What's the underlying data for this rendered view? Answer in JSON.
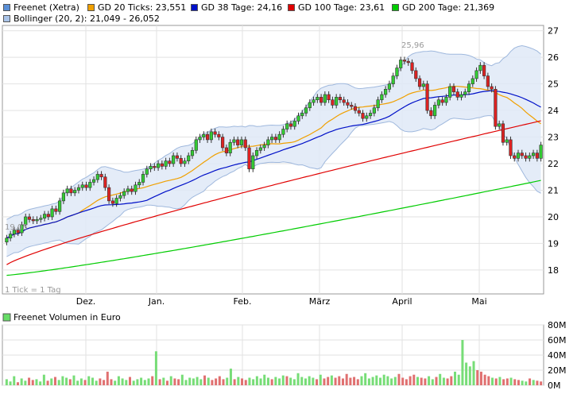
{
  "legend": {
    "items": [
      {
        "label": "Freenet (Xetra)",
        "color": "#5a8fd6"
      },
      {
        "label": "GD 20 Ticks: 23,551",
        "color": "#f0a000"
      },
      {
        "label": "GD 38 Tage: 24,16",
        "color": "#0010c8"
      },
      {
        "label": "GD 100 Tage: 23,61",
        "color": "#e00000"
      },
      {
        "label": "GD 200 Tage: 21,369",
        "color": "#00cc00"
      },
      {
        "label": "Bollinger (20, 2): 21,049 - 26,052",
        "color": "#aac4e8"
      }
    ]
  },
  "volume_legend": {
    "label": "Freenet Volumen in Euro",
    "color": "#66dd66"
  },
  "chart_data": [
    {
      "type": "candlestick",
      "title": "",
      "x_tick_labels": [
        "Dez.",
        "Jan.",
        "Feb.",
        "März",
        "April",
        "Mai"
      ],
      "y_ticks": [
        18,
        19,
        20,
        21,
        22,
        23,
        24,
        25,
        26,
        27
      ],
      "ylim": [
        17.1,
        27.2
      ],
      "grid": true,
      "annotations": {
        "min_label": "19,05",
        "max_label": "25,96",
        "tick_note": "1 Tick = 1 Tag"
      },
      "closes": [
        19.2,
        19.35,
        19.5,
        19.4,
        19.7,
        20.0,
        19.9,
        19.85,
        19.9,
        19.95,
        20.1,
        20.0,
        20.3,
        20.2,
        20.6,
        20.9,
        21.05,
        20.9,
        21.0,
        21.1,
        21.2,
        21.1,
        21.3,
        21.4,
        21.6,
        21.5,
        21.1,
        20.6,
        20.5,
        20.7,
        20.8,
        20.95,
        21.05,
        20.95,
        21.2,
        21.3,
        21.6,
        21.8,
        21.9,
        21.85,
        22.0,
        21.9,
        22.1,
        22.0,
        22.3,
        22.2,
        22.0,
        22.1,
        22.3,
        22.5,
        22.9,
        23.0,
        23.1,
        22.9,
        23.2,
        23.1,
        23.0,
        22.6,
        22.4,
        22.8,
        22.9,
        22.7,
        22.9,
        22.6,
        21.8,
        22.3,
        22.5,
        22.6,
        22.7,
        22.9,
        23.0,
        22.9,
        23.1,
        23.3,
        23.5,
        23.4,
        23.6,
        23.8,
        23.9,
        24.1,
        24.3,
        24.4,
        24.5,
        24.3,
        24.6,
        24.4,
        24.2,
        24.5,
        24.4,
        24.3,
        24.2,
        24.15,
        24.0,
        23.9,
        23.7,
        23.8,
        23.9,
        24.1,
        24.4,
        24.6,
        24.8,
        25.0,
        25.3,
        25.6,
        25.9,
        25.85,
        25.8,
        25.5,
        25.2,
        24.9,
        25.0,
        24.0,
        23.8,
        24.2,
        24.4,
        24.3,
        24.5,
        24.9,
        24.7,
        24.5,
        24.6,
        24.7,
        25.0,
        25.2,
        25.5,
        25.7,
        25.3,
        24.9,
        24.8,
        23.4,
        23.5,
        22.8,
        22.9,
        22.3,
        22.2,
        22.4,
        22.3,
        22.2,
        22.3,
        22.4,
        22.2,
        22.7
      ],
      "bollinger": {
        "upper": 26.052,
        "lower": 21.049
      },
      "moving_averages": [
        {
          "name": "GD 20 Ticks",
          "value": 23.551
        },
        {
          "name": "GD 38 Tage",
          "value": 24.16
        },
        {
          "name": "GD 100 Tage",
          "value": 23.61
        },
        {
          "name": "GD 200 Tage",
          "value": 21.369
        }
      ]
    },
    {
      "type": "bar",
      "title": "Freenet Volumen in Euro",
      "y_tick_labels": [
        "0M",
        "20M",
        "40M",
        "60M",
        "80M"
      ],
      "ylim": [
        0,
        80
      ],
      "values": [
        8,
        5,
        12,
        4,
        9,
        6,
        10,
        7,
        8,
        5,
        14,
        6,
        9,
        11,
        7,
        12,
        10,
        8,
        13,
        6,
        9,
        7,
        12,
        10,
        6,
        9,
        7,
        18,
        8,
        6,
        12,
        9,
        7,
        11,
        6,
        8,
        10,
        7,
        9,
        12,
        45,
        8,
        10,
        6,
        12,
        9,
        8,
        14,
        7,
        10,
        9,
        11,
        8,
        13,
        10,
        7,
        9,
        12,
        8,
        10,
        22,
        8,
        11,
        9,
        7,
        10,
        8,
        12,
        9,
        14,
        10,
        8,
        11,
        9,
        13,
        12,
        10,
        8,
        16,
        11,
        9,
        12,
        10,
        8,
        14,
        9,
        11,
        13,
        10,
        12,
        9,
        15,
        10,
        11,
        8,
        12,
        16,
        9,
        11,
        13,
        10,
        14,
        12,
        9,
        11,
        15,
        10,
        8,
        12,
        14,
        11,
        10,
        9,
        12,
        8,
        11,
        15,
        10,
        9,
        12,
        18,
        14,
        60,
        30,
        25,
        32,
        20,
        18,
        14,
        12,
        10,
        9,
        11,
        8,
        9,
        10,
        8,
        7,
        6,
        5,
        9,
        7,
        6,
        5
      ]
    }
  ]
}
